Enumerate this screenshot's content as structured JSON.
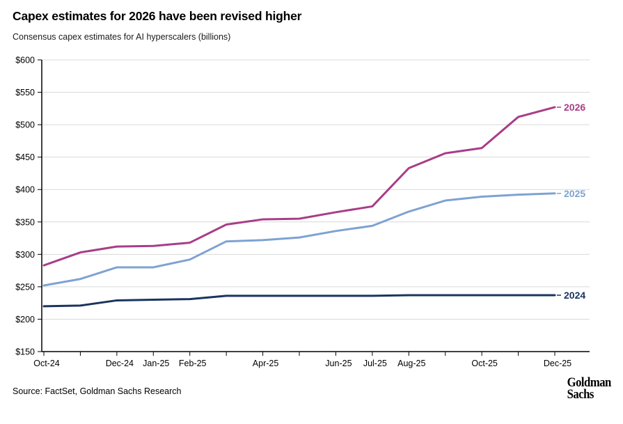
{
  "header": {
    "title": "Capex estimates for 2026 have been revised higher",
    "subtitle": "Consensus capex estimates for AI hyperscalers (billions)"
  },
  "footer": {
    "source": "Source: FactSet, Goldman Sachs Research",
    "logo_line1": "Goldman",
    "logo_line2": "Sachs"
  },
  "colors": {
    "series_2026": "#A83D87",
    "series_2025": "#7EA2D2",
    "series_2024": "#1A345F",
    "gridline": "#D9D9D9",
    "axis": "#000000",
    "text": "#000000"
  },
  "chart_data": {
    "type": "line",
    "title": "Capex estimates for 2026 have been revised higher",
    "subtitle": "Consensus capex estimates for AI hyperscalers (billions)",
    "x": [
      "Oct-24",
      "Nov-24",
      "Dec-24",
      "Jan-25",
      "Feb-25",
      "Mar-25",
      "Apr-25",
      "May-25",
      "Jun-25",
      "Jul-25",
      "Aug-25",
      "Sep-25",
      "Oct-25",
      "Nov-25",
      "Dec-25"
    ],
    "x_labeled_tick_indices": [
      0,
      2,
      3,
      4,
      6,
      8,
      9,
      10,
      12,
      14
    ],
    "y_axis": {
      "min": 150,
      "max": 600,
      "step": 50,
      "tick_prefix": "$",
      "tick_labels": [
        "$150",
        "$200",
        "$250",
        "$300",
        "$350",
        "$400",
        "$450",
        "$500",
        "$550",
        "$600"
      ]
    },
    "grid": true,
    "legend_position": "line-end-labels",
    "series": [
      {
        "name": "2026",
        "color": "#A83D87",
        "values": [
          283,
          303,
          312,
          313,
          318,
          346,
          354,
          355,
          365,
          374,
          433,
          456,
          464,
          512,
          527
        ]
      },
      {
        "name": "2025",
        "color": "#7EA2D2",
        "values": [
          252,
          262,
          280,
          280,
          292,
          320,
          322,
          326,
          336,
          344,
          366,
          383,
          389,
          392,
          394
        ]
      },
      {
        "name": "2024",
        "color": "#1A345F",
        "values": [
          220,
          221,
          229,
          230,
          231,
          236,
          236,
          236,
          236,
          236,
          237,
          237,
          237,
          237,
          237
        ]
      }
    ]
  }
}
